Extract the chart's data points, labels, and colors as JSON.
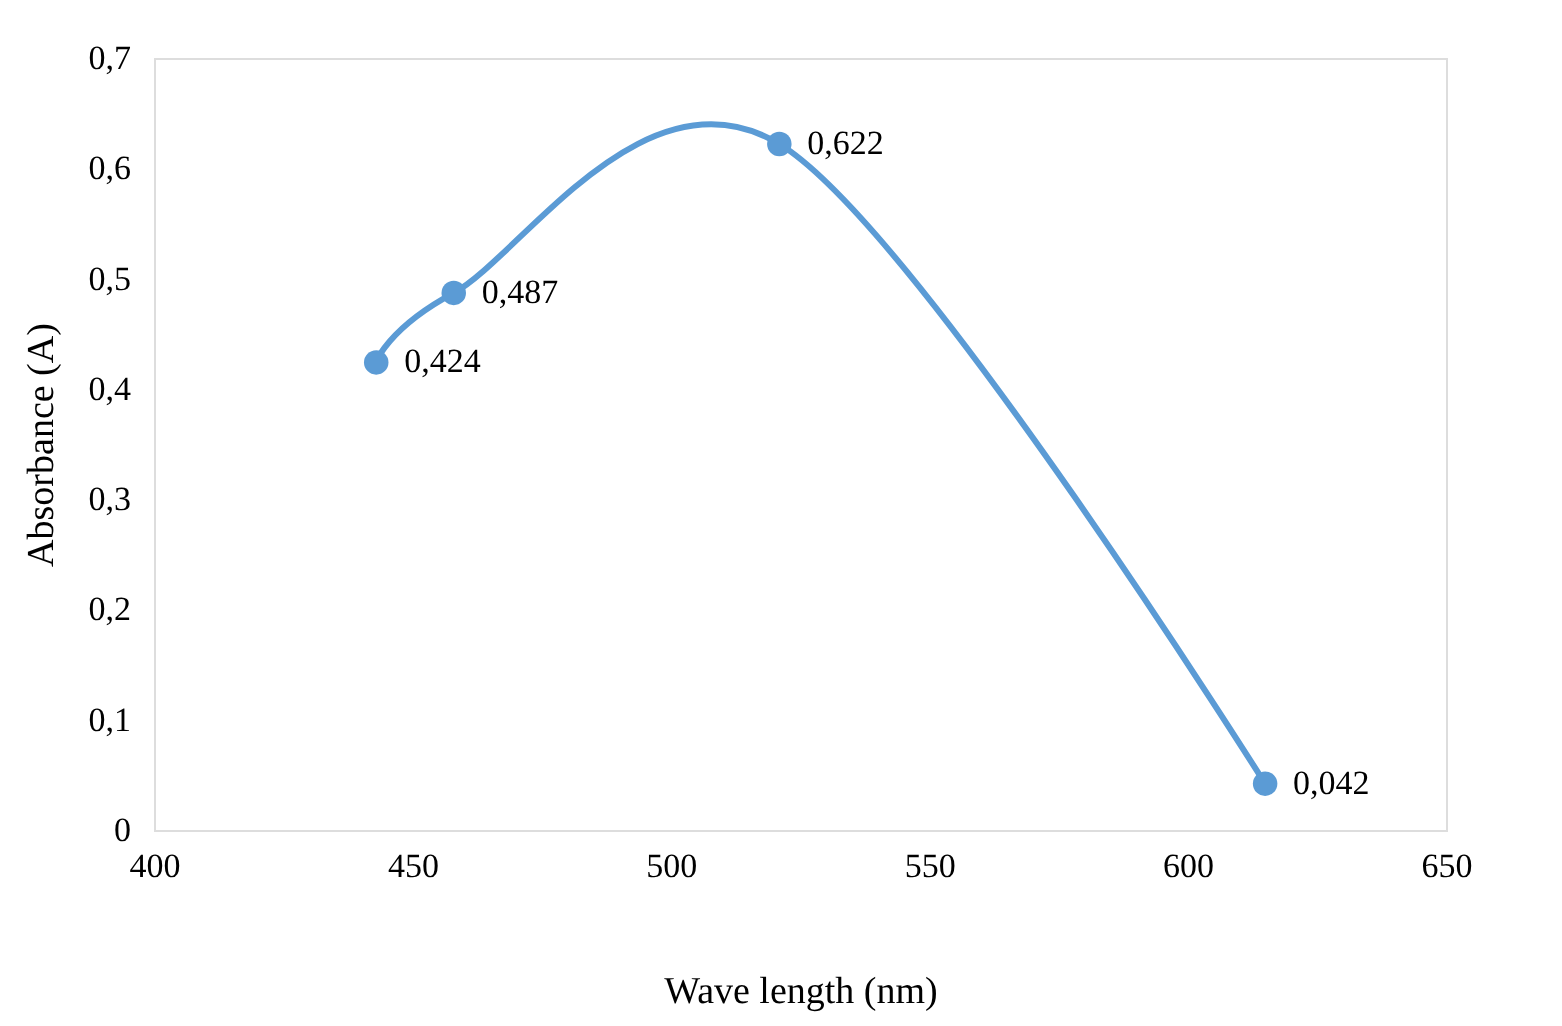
{
  "chart_data": {
    "type": "line",
    "xlabel": "Wave length (nm)",
    "ylabel": "Absorbance (A)",
    "x": [
      443,
      458,
      521,
      615
    ],
    "series": [
      {
        "color": "#5b9bd5",
        "values": [
          0.424,
          0.487,
          0.622,
          0.042
        ],
        "value_labels": [
          "0,424",
          "0,487",
          "0,622",
          "0,042"
        ]
      }
    ],
    "xlim": [
      400,
      650
    ],
    "xticks": [
      400,
      450,
      500,
      550,
      600,
      650
    ],
    "ylim": [
      0,
      0.7
    ],
    "yticks": [
      0,
      {
        "value": 0.1,
        "label": "0,1"
      },
      {
        "value": 0.2,
        "label": "0,2"
      },
      {
        "value": 0.3,
        "label": "0,3"
      },
      {
        "value": 0.4,
        "label": "0,4"
      },
      {
        "value": 0.5,
        "label": "0,5"
      },
      {
        "value": 0.6,
        "label": "0,6"
      },
      {
        "value": 0.7,
        "label": "0,7"
      }
    ],
    "grid": false,
    "marker": "circle",
    "line_style": "solid"
  }
}
